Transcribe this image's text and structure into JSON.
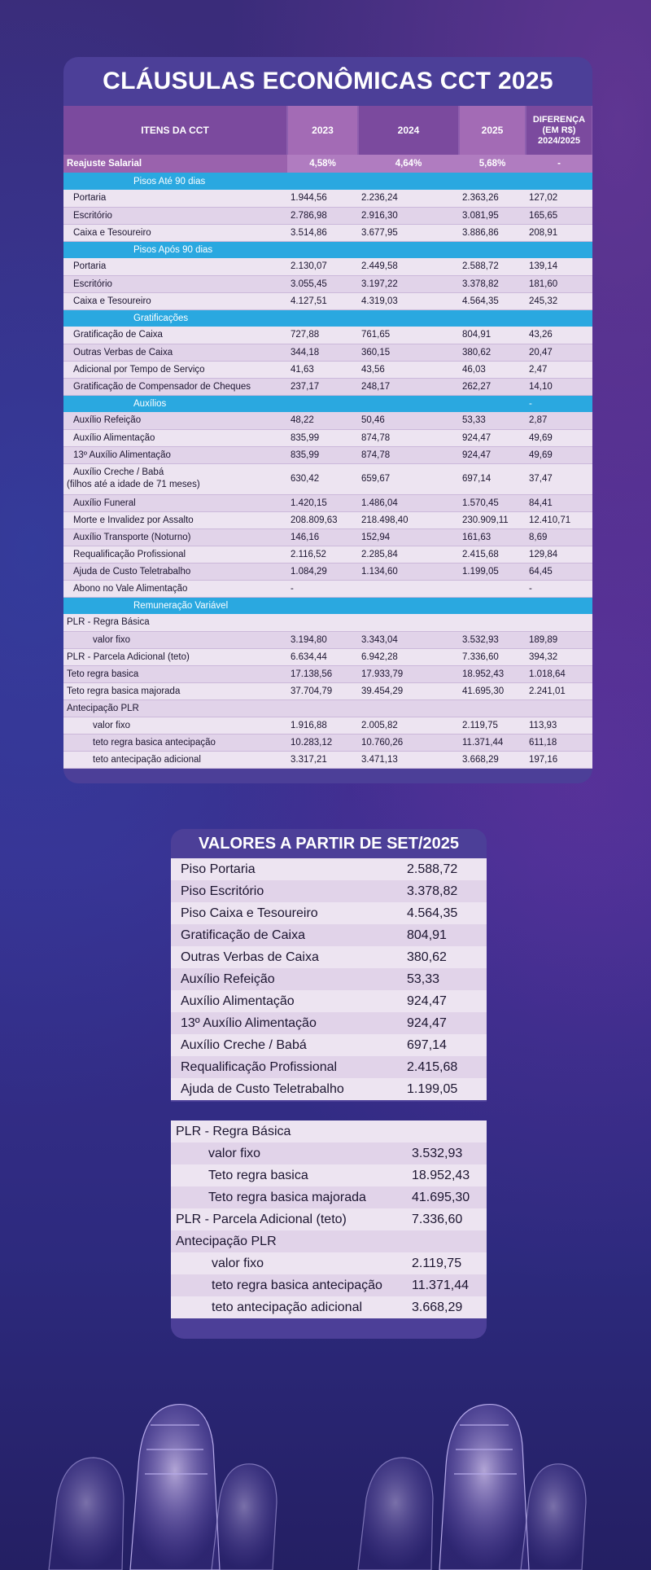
{
  "title": "CLÁUSULAS ECONÔMICAS CCT 2025",
  "table": {
    "headers": [
      "ITENS DA CCT",
      "2023",
      "2024",
      "2025",
      "DIFERENÇA (EM R$) 2024/2025"
    ],
    "reajuste": {
      "label": "Reajuste Salarial",
      "v2023": "4,58%",
      "v2024": "4,64%",
      "v2025": "5,68%",
      "diff": "-"
    },
    "sections": [
      {
        "title": "Pisos Até 90 dias",
        "rows": [
          [
            "Portaria",
            "1.944,56",
            "2.236,24",
            "2.363,26",
            "127,02"
          ],
          [
            "Escritório",
            "2.786,98",
            "2.916,30",
            "3.081,95",
            "165,65"
          ],
          [
            "Caixa e Tesoureiro",
            "3.514,86",
            "3.677,95",
            "3.886,86",
            "208,91"
          ]
        ]
      },
      {
        "title": "Pisos Após 90 dias",
        "rows": [
          [
            "Portaria",
            "2.130,07",
            "2.449,58",
            "2.588,72",
            "139,14"
          ],
          [
            "Escritório",
            "3.055,45",
            "3.197,22",
            "3.378,82",
            "181,60"
          ],
          [
            "Caixa e Tesoureiro",
            "4.127,51",
            "4.319,03",
            "4.564,35",
            "245,32"
          ]
        ]
      },
      {
        "title": "Gratificações",
        "rows": [
          [
            "Gratificação de Caixa",
            "727,88",
            "761,65",
            "804,91",
            "43,26"
          ],
          [
            "Outras Verbas de Caixa",
            "344,18",
            "360,15",
            "380,62",
            "20,47"
          ],
          [
            "Adicional por Tempo de Serviço",
            "41,63",
            "43,56",
            "46,03",
            "2,47"
          ],
          [
            "Gratificação de Compensador de Cheques",
            "237,17",
            "248,17",
            "262,27",
            "14,10"
          ]
        ]
      },
      {
        "title": "Auxílios",
        "diff": "-",
        "rows": [
          [
            "Auxílio Refeição",
            "48,22",
            "50,46",
            "53,33",
            "2,87"
          ],
          [
            "Auxílio Alimentação",
            "835,99",
            "874,78",
            "924,47",
            "49,69"
          ],
          [
            "13º Auxílio Alimentação",
            "835,99",
            "874,78",
            "924,47",
            "49,69"
          ],
          [
            "Auxílio Creche / Babá",
            "630,42",
            "659,67",
            "697,14",
            "37,47"
          ],
          [
            "Auxílio Funeral",
            "1.420,15",
            "1.486,04",
            "1.570,45",
            "84,41"
          ],
          [
            "Morte e Invalidez por Assalto",
            "208.809,63",
            "218.498,40",
            "230.909,11",
            "12.410,71"
          ],
          [
            "Auxílio Transporte (Noturno)",
            "146,16",
            "152,94",
            "161,63",
            "8,69"
          ],
          [
            "Requalificação Profissional",
            "2.116,52",
            "2.285,84",
            "2.415,68",
            "129,84"
          ],
          [
            "Ajuda de Custo Teletrabalho",
            "1.084,29",
            "1.134,60",
            "1.199,05",
            "64,45"
          ],
          [
            "Abono no Vale Alimentação",
            "-",
            "",
            "",
            "-"
          ]
        ],
        "creche_note": "(filhos até a idade de 71 meses)"
      },
      {
        "title": "Remuneração Variável",
        "rows": [
          [
            "PLR - Regra Básica",
            "",
            "",
            "",
            ""
          ],
          [
            "valor fixo",
            "3.194,80",
            "3.343,04",
            "3.532,93",
            "189,89"
          ],
          [
            "PLR - Parcela Adicional (teto)",
            "6.634,44",
            "6.942,28",
            "7.336,60",
            "394,32"
          ],
          [
            "Teto regra basica",
            "17.138,56",
            "17.933,79",
            "18.952,43",
            "1.018,64"
          ],
          [
            "Teto regra basica majorada",
            "37.704,79",
            "39.454,29",
            "41.695,30",
            "2.241,01"
          ],
          [
            "Antecipação PLR",
            "",
            "",
            "",
            ""
          ],
          [
            "valor fixo",
            "1.916,88",
            "2.005,82",
            "2.119,75",
            "113,93"
          ],
          [
            "teto regra basica antecipação",
            "10.283,12",
            "10.760,26",
            "11.371,44",
            "611,18"
          ],
          [
            "teto antecipação adicional",
            "3.317,21",
            "3.471,13",
            "3.668,29",
            "197,16"
          ]
        ]
      }
    ]
  },
  "values": {
    "title": "VALORES A PARTIR DE SET/2025",
    "items": [
      [
        "Piso Portaria",
        "2.588,72"
      ],
      [
        "Piso Escritório",
        "3.378,82"
      ],
      [
        "Piso Caixa e Tesoureiro",
        "4.564,35"
      ],
      [
        "Gratificação de Caixa",
        "804,91"
      ],
      [
        "Outras Verbas de Caixa",
        "380,62"
      ],
      [
        "Auxílio Refeição",
        "53,33"
      ],
      [
        "Auxílio Alimentação",
        "924,47"
      ],
      [
        "13º Auxílio Alimentação",
        "924,47"
      ],
      [
        "Auxílio Creche / Babá",
        "697,14"
      ],
      [
        "Requalificação Profissional",
        "2.415,68"
      ],
      [
        "Ajuda de Custo Teletrabalho",
        "1.199,05"
      ]
    ],
    "plr": [
      [
        "PLR - Regra Básica",
        ""
      ],
      [
        "valor fixo",
        "3.532,93"
      ],
      [
        "Teto regra basica",
        "18.952,43"
      ],
      [
        "Teto regra basica majorada",
        "41.695,30"
      ],
      [
        "PLR - Parcela Adicional (teto)",
        "7.336,60"
      ],
      [
        "Antecipação PLR",
        ""
      ],
      [
        "valor fixo",
        "2.119,75"
      ],
      [
        "teto regra basica antecipação",
        "11.371,44"
      ],
      [
        "teto antecipação adicional",
        "3.668,29"
      ]
    ]
  },
  "colors": {
    "accent_blue": "#2aa8e0",
    "header_purple": "#7b4a9e",
    "card": "#4c3f98"
  }
}
